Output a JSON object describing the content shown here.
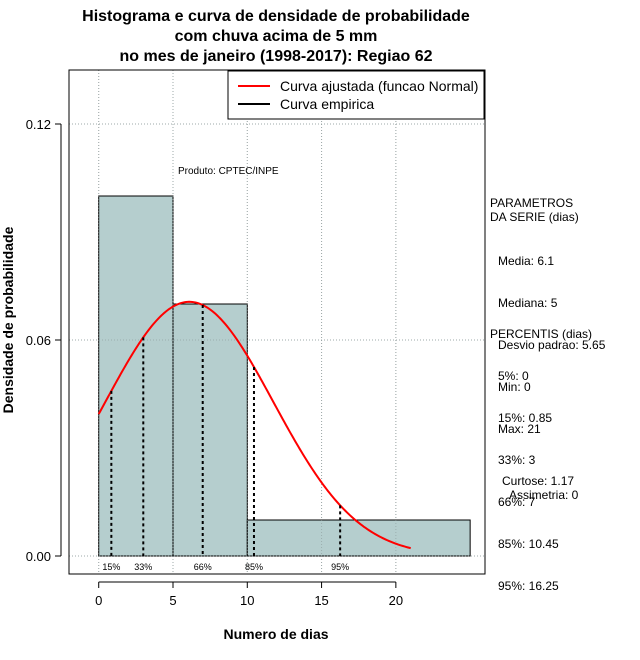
{
  "chart_data": {
    "type": "bar",
    "title_lines": [
      "Histograma e curva de densidade de probabilidade",
      "com chuva acima de 5 mm",
      "no mes de janeiro (1998-2017): Regiao 62"
    ],
    "xlabel": "Numero de dias",
    "ylabel": "Densidade de probabilidade",
    "xlim": [
      -2,
      26
    ],
    "ylim": [
      -0.005,
      0.135
    ],
    "x_ticks": [
      0,
      5,
      10,
      15,
      20
    ],
    "y_ticks": [
      0.0,
      0.06,
      0.12
    ],
    "y_tick_labels": [
      "0.00",
      "0.06",
      "0.12"
    ],
    "grid": true,
    "legend_placement": "top-right",
    "histogram": [
      {
        "x0": 0,
        "x1": 5,
        "density": 0.1
      },
      {
        "x0": 5,
        "x1": 10,
        "density": 0.07
      },
      {
        "x0": 10,
        "x1": 25,
        "density": 0.01
      }
    ],
    "series": [
      {
        "name": "Curva ajustada (funcao Normal)",
        "color": "#ff0000",
        "distribution": "normal",
        "mean": 6.1,
        "sd": 5.65,
        "x_range": [
          0,
          21
        ]
      },
      {
        "name": "Curva empirica",
        "color": "#000000"
      }
    ],
    "percentile_markers": [
      {
        "label": "15%",
        "x": 0.85
      },
      {
        "label": "33%",
        "x": 3
      },
      {
        "label": "66%",
        "x": 7
      },
      {
        "label": "85%",
        "x": 10.45
      },
      {
        "label": "95%",
        "x": 16.25
      }
    ],
    "annotation": "Produto: CPTEC/INPE",
    "colors": {
      "bars": "#b5cece",
      "fit_curve": "#ff0000",
      "grid": "#bebebe"
    }
  },
  "side_panel": {
    "parametros_title": "PARAMETROS\nDA SERIE (dias)",
    "parametros": [
      "Media: 6.1",
      "Mediana: 5",
      "Desvio padrao: 5.65",
      "Min: 0",
      "Max: 21"
    ],
    "percentis_title": "PERCENTIS (dias)",
    "percentis": [
      "5%: 0",
      "15%: 0.85",
      "33%: 3",
      "66%: 7",
      "85%: 10.45",
      "95%: 16.25"
    ],
    "curtose": "Curtose: 1.17",
    "assimetria": "Assimetria: 0"
  }
}
